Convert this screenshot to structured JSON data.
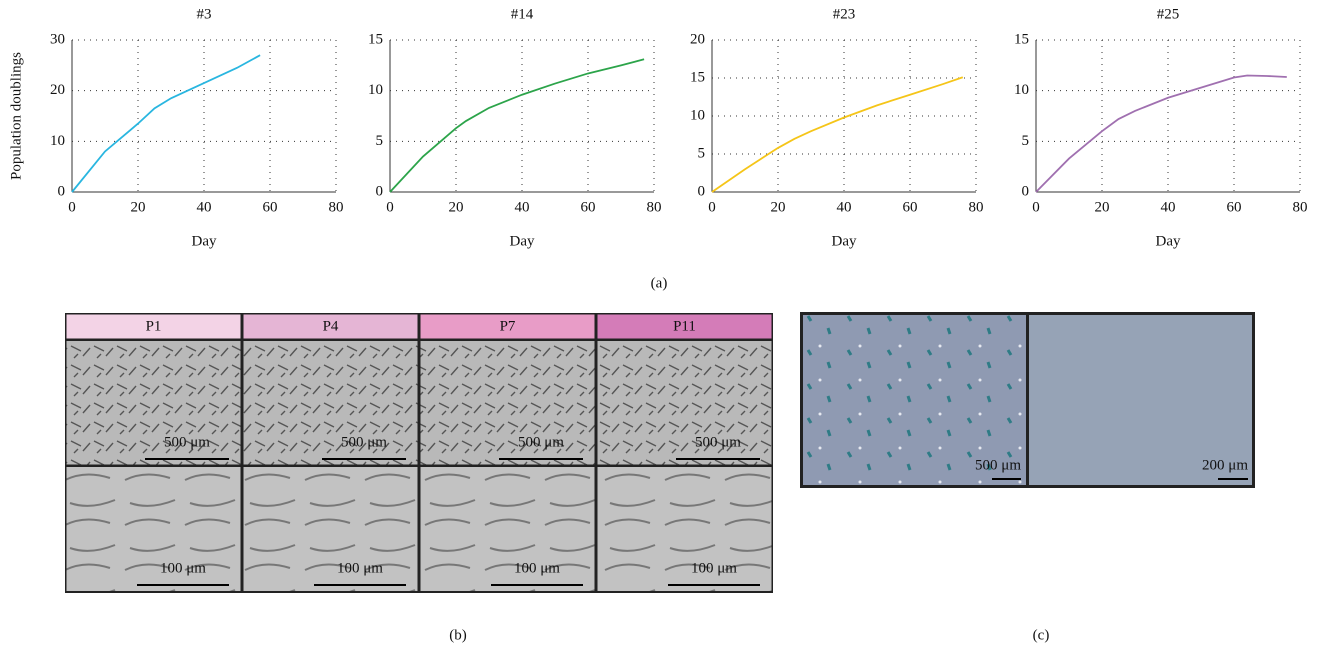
{
  "chart_data": [
    {
      "type": "line",
      "title": "#3",
      "y_label": "Population doublings",
      "x_label": "Day",
      "x": [
        0,
        10,
        20,
        25,
        30,
        40,
        50,
        57
      ],
      "values": [
        0,
        8,
        13.5,
        16.5,
        18.5,
        21.5,
        24.5,
        27
      ],
      "color": "#29b6e0",
      "xlim": [
        0,
        80
      ],
      "ylim": [
        0,
        30
      ],
      "xticks": [
        0,
        20,
        40,
        60,
        80
      ],
      "yticks": [
        0,
        10,
        20,
        30
      ],
      "grid": true
    },
    {
      "type": "line",
      "title": "#14",
      "x_label": "Day",
      "x": [
        0,
        10,
        20,
        23,
        30,
        40,
        50,
        60,
        70,
        77
      ],
      "values": [
        0,
        3.5,
        6.3,
        7,
        8.3,
        9.6,
        10.7,
        11.7,
        12.5,
        13.1
      ],
      "color": "#2ca44a",
      "xlim": [
        0,
        80
      ],
      "ylim": [
        0,
        15
      ],
      "xticks": [
        0,
        20,
        40,
        60,
        80
      ],
      "yticks": [
        0,
        5,
        10,
        15
      ],
      "grid": true
    },
    {
      "type": "line",
      "title": "#23",
      "x_label": "Day",
      "x": [
        0,
        10,
        20,
        25,
        30,
        40,
        50,
        60,
        70,
        76
      ],
      "values": [
        0,
        3,
        5.8,
        7,
        8,
        9.8,
        11.4,
        12.8,
        14.2,
        15.1
      ],
      "color": "#f5c518",
      "xlim": [
        0,
        80
      ],
      "ylim": [
        0,
        20
      ],
      "xticks": [
        0,
        20,
        40,
        60,
        80
      ],
      "yticks": [
        0,
        5,
        10,
        15,
        20
      ],
      "grid": true
    },
    {
      "type": "line",
      "title": "#25",
      "x_label": "Day",
      "x": [
        0,
        10,
        20,
        25,
        30,
        40,
        50,
        60,
        64,
        70,
        76
      ],
      "values": [
        0,
        3.3,
        6,
        7.2,
        8,
        9.3,
        10.3,
        11.3,
        11.5,
        11.45,
        11.35
      ],
      "color": "#a070b0",
      "xlim": [
        0,
        80
      ],
      "ylim": [
        0,
        15
      ],
      "xticks": [
        0,
        20,
        40,
        60,
        80
      ],
      "yticks": [
        0,
        5,
        10,
        15
      ],
      "grid": true
    }
  ],
  "figure": {
    "panel_labels": [
      "(a)",
      "(b)",
      "(c)"
    ],
    "passages": [
      "P1",
      "P4",
      "P7",
      "P11"
    ],
    "passage_scale_top": [
      "500 μm",
      "500 μm",
      "500 μm",
      "500 μm"
    ],
    "passage_scale_bottom": [
      "100 μm",
      "100 μm",
      "100 μm",
      "100 μm"
    ],
    "staining_scale": [
      "500 μm",
      "200 μm"
    ]
  }
}
